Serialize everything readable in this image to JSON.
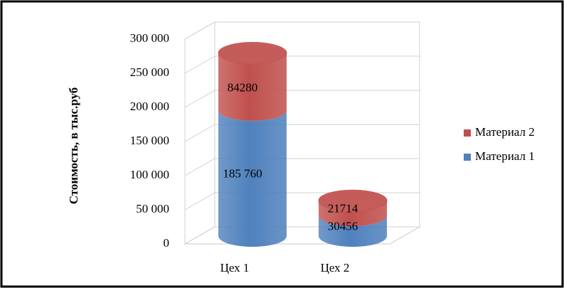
{
  "chart_data": {
    "type": "bar",
    "y_label": "Стоимость, в тыс.руб",
    "categories": [
      "Цех 1",
      "Цех 2"
    ],
    "series": [
      {
        "name": "Материал 1",
        "color": "#4f81bd",
        "values": [
          185760,
          30456
        ],
        "value_labels": [
          "185 760",
          "30456"
        ]
      },
      {
        "name": "Материал 2",
        "color": "#c0504d",
        "values": [
          84280,
          21714
        ],
        "value_labels": [
          "84280",
          "21714"
        ]
      }
    ],
    "stacked": true,
    "ylim": [
      0,
      300000
    ],
    "yticks": [
      0,
      {
        "value": 50000,
        "label": "50 000"
      },
      {
        "value": 100000,
        "label": "100 000"
      },
      {
        "value": 150000,
        "label": "150 000"
      },
      {
        "value": 200000,
        "label": "200 000"
      },
      {
        "value": 250000,
        "label": "250 000"
      },
      {
        "value": 300000,
        "label": "300 000"
      }
    ],
    "grid": true,
    "legend": "right"
  }
}
